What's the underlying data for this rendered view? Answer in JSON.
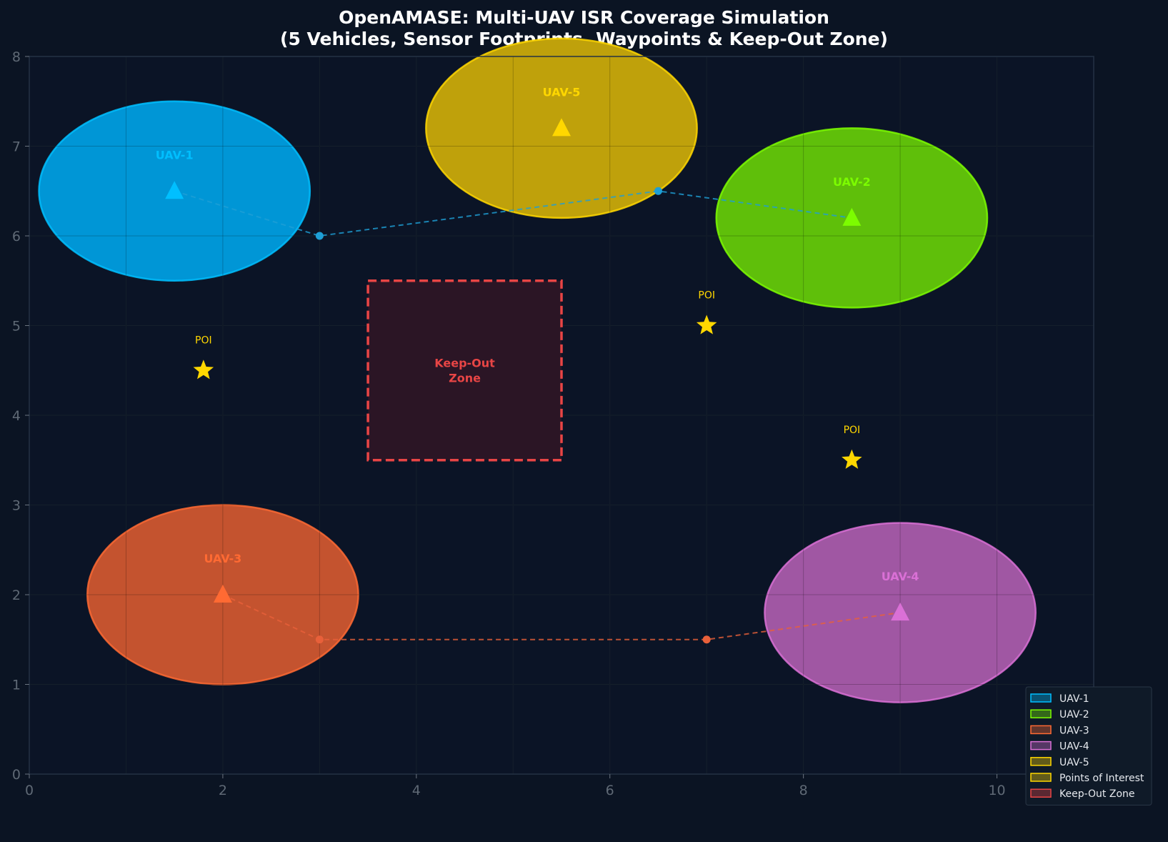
{
  "chart_data": {
    "type": "scatter",
    "title_line1": "OpenAMASE: Multi-UAV ISR Coverage Simulation",
    "title_line2": "(5 Vehicles, Sensor Footprints, Waypoints & Keep-Out Zone)",
    "xlim": [
      0,
      11
    ],
    "ylim": [
      0,
      8
    ],
    "xticks": [
      "0",
      "2",
      "4",
      "6",
      "8",
      "10"
    ],
    "yticks": [
      "0",
      "1",
      "2",
      "3",
      "4",
      "5",
      "6",
      "7",
      "8"
    ],
    "grid": true,
    "legend_position": "lower-right",
    "uavs": [
      {
        "name": "UAV-1",
        "x": 1.5,
        "y": 6.5,
        "footprint_rx": 1.4,
        "footprint_ry": 1.0,
        "color": "#00bfff",
        "fill": "#0096d6"
      },
      {
        "name": "UAV-2",
        "x": 8.5,
        "y": 6.2,
        "footprint_rx": 1.4,
        "footprint_ry": 1.0,
        "color": "#7cfc00",
        "fill": "#5fbf0a"
      },
      {
        "name": "UAV-3",
        "x": 2.0,
        "y": 2.0,
        "footprint_rx": 1.4,
        "footprint_ry": 1.0,
        "color": "#ff6a33",
        "fill": "#c4532f"
      },
      {
        "name": "UAV-4",
        "x": 9.0,
        "y": 1.8,
        "footprint_rx": 1.4,
        "footprint_ry": 1.0,
        "color": "#da70d6",
        "fill": "#a057a3"
      },
      {
        "name": "UAV-5",
        "x": 5.5,
        "y": 7.2,
        "footprint_rx": 1.4,
        "footprint_ry": 1.0,
        "color": "#ffd700",
        "fill": "#bfa10b"
      }
    ],
    "routes": [
      {
        "color": "#1e9fd6",
        "points": [
          [
            1.5,
            6.5
          ],
          [
            3.0,
            6.0
          ],
          [
            6.5,
            6.5
          ],
          [
            8.5,
            6.2
          ]
        ],
        "waypoints": [
          [
            3.0,
            6.0
          ],
          [
            6.5,
            6.5
          ]
        ]
      },
      {
        "color": "#e8603a",
        "points": [
          [
            2.0,
            2.0
          ],
          [
            3.0,
            1.5
          ],
          [
            7.0,
            1.5
          ],
          [
            9.0,
            1.8
          ]
        ],
        "waypoints": [
          [
            3.0,
            1.5
          ],
          [
            7.0,
            1.5
          ]
        ]
      }
    ],
    "pois": [
      {
        "label": "POI",
        "x": 1.8,
        "y": 4.5
      },
      {
        "label": "POI",
        "x": 7.0,
        "y": 5.0
      },
      {
        "label": "POI",
        "x": 8.5,
        "y": 3.5
      }
    ],
    "poi_color": "#ffd700",
    "keep_out": {
      "label_line1": "Keep-Out",
      "label_line2": "Zone",
      "x0": 3.5,
      "x1": 5.5,
      "y0": 3.5,
      "y1": 5.5,
      "color": "#e84545"
    },
    "legend": [
      {
        "label": "UAV-1",
        "color": "#00bfff"
      },
      {
        "label": "UAV-2",
        "color": "#7cfc00"
      },
      {
        "label": "UAV-3",
        "color": "#ff6a33"
      },
      {
        "label": "UAV-4",
        "color": "#da70d6"
      },
      {
        "label": "UAV-5",
        "color": "#ffd700"
      },
      {
        "label": "Points of Interest",
        "color": "#ffd700"
      },
      {
        "label": "Keep-Out Zone",
        "color": "#e84545"
      }
    ]
  }
}
